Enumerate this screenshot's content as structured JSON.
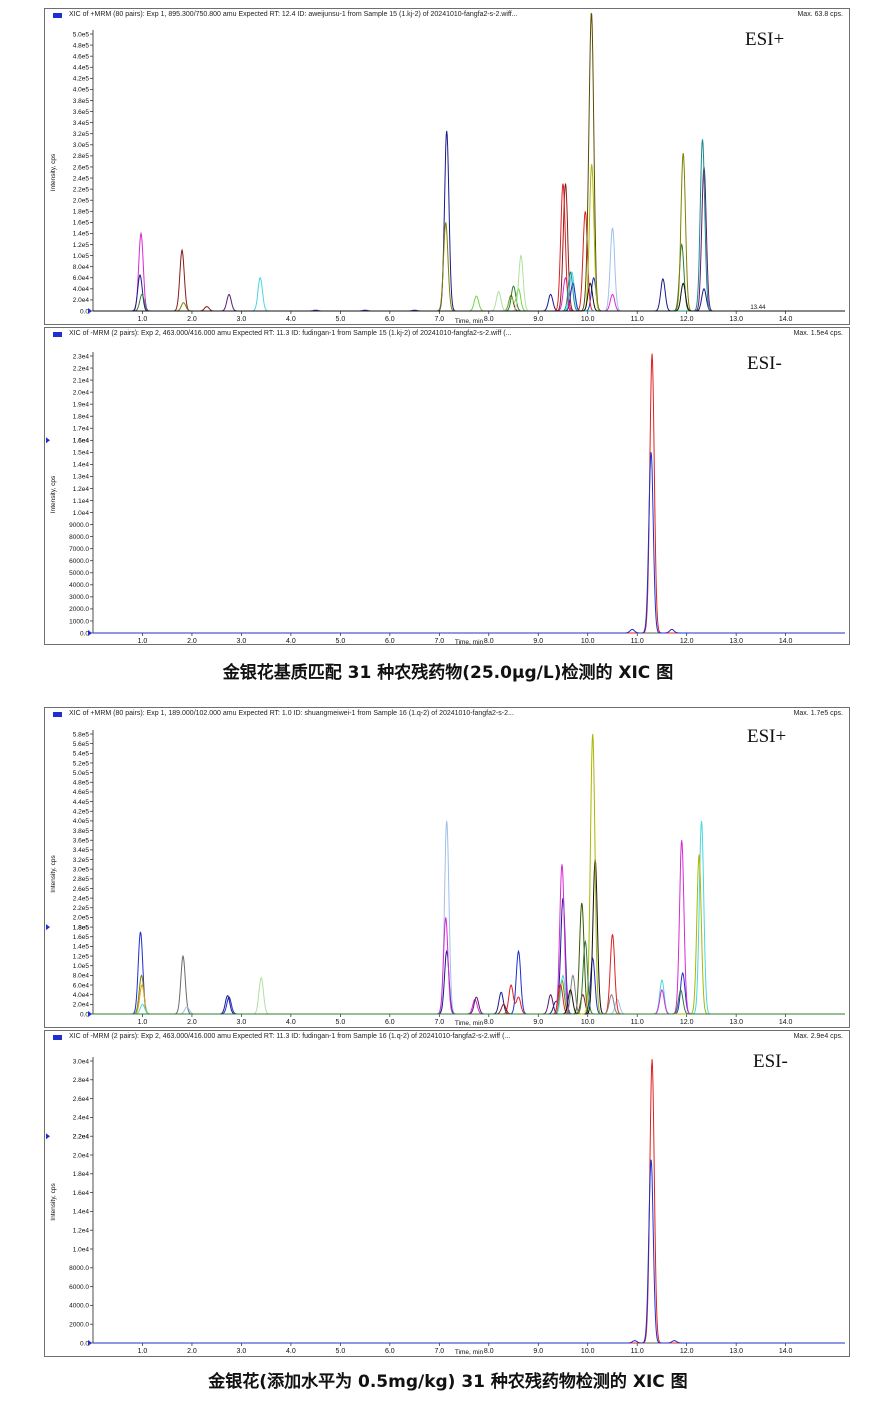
{
  "captions": {
    "top": "金银花基质匹配 31 种农残药物(25.0μg/L)检测的 XIC 图",
    "bottom": "金银花(添加水平为 0.5mg/kg) 31 种农残药物检测的 XIC 图"
  },
  "chart_data": [
    {
      "type": "line",
      "header": "XIC of +MRM (80 pairs): Exp 1, 895.300/750.800 amu Expected RT: 12.4 ID: aweijunsu-1 from Sample 15 (1.kj-2) of 20241010-fangfa2-s-2.wiff...",
      "max_label": "Max. 63.8 cps.",
      "esi_label": "ESI+",
      "ylabel": "Intensity, cps",
      "xlabel": "Time, min",
      "xlim": [
        0,
        15.2
      ],
      "ylim": [
        0,
        500000
      ],
      "x_ticks": [
        1,
        2,
        3,
        4,
        5,
        6,
        7,
        8,
        9,
        10,
        11,
        12,
        13,
        14
      ],
      "x_tick_labels": [
        "1.0",
        "2.0",
        "3.0",
        "4.0",
        "5.0",
        "6.0",
        "7.0",
        "8.0",
        "9.0",
        "10.0",
        "11.0",
        "12.0",
        "13.0",
        "14.0"
      ],
      "y_ticks": [
        0,
        20000,
        40000,
        60000,
        80000,
        100000,
        120000,
        140000,
        160000,
        180000,
        200000,
        220000,
        240000,
        260000,
        280000,
        300000,
        320000,
        340000,
        360000,
        380000,
        400000,
        420000,
        440000,
        460000,
        480000,
        500000
      ],
      "y_tick_labels": [
        "0.0",
        "2.0e4",
        "4.0e4",
        "6.0e4",
        "8.0e4",
        "1.0e5",
        "1.2e5",
        "1.4e5",
        "1.6e5",
        "1.8e5",
        "2.0e5",
        "2.2e5",
        "2.4e5",
        "2.6e5",
        "2.8e5",
        "3.0e5",
        "3.2e5",
        "3.4e5",
        "3.6e5",
        "3.8e5",
        "4.0e5",
        "4.2e5",
        "4.4e5",
        "4.6e5",
        "4.8e5",
        "5.0e5"
      ],
      "annotations": [
        "13.44"
      ],
      "series": [
        {
          "color": "#d62ad6",
          "peaks": [
            [
              0.97,
              140000
            ],
            [
              9.55,
              60000
            ],
            [
              10.5,
              30000
            ]
          ]
        },
        {
          "color": "#1a1a8c",
          "peaks": [
            [
              0.95,
              65000
            ],
            [
              7.15,
              325000
            ],
            [
              9.25,
              30000
            ],
            [
              11.52,
              58000
            ],
            [
              12.35,
              40000
            ]
          ]
        },
        {
          "color": "#2e7d32",
          "peaks": [
            [
              0.99,
              30000
            ],
            [
              8.5,
              45000
            ],
            [
              11.9,
              120000
            ]
          ]
        },
        {
          "color": "#8b1a1a",
          "peaks": [
            [
              1.8,
              110000
            ],
            [
              2.3,
              8000
            ],
            [
              8.45,
              28000
            ],
            [
              9.55,
              230000
            ]
          ]
        },
        {
          "color": "#808000",
          "peaks": [
            [
              1.83,
              15000
            ],
            [
              7.13,
              160000
            ],
            [
              11.93,
              285000
            ]
          ]
        },
        {
          "color": "#5a1a6e",
          "peaks": [
            [
              2.75,
              30000
            ],
            [
              12.35,
              260000
            ]
          ]
        },
        {
          "color": "#48d8e0",
          "peaks": [
            [
              3.38,
              60000
            ],
            [
              9.68,
              70000
            ]
          ]
        },
        {
          "color": "#1f2fd0",
          "peaks": [
            [
              4.5,
              1500
            ],
            [
              5.5,
              1500
            ],
            [
              6.5,
              1500
            ],
            [
              9.7,
              50000
            ],
            [
              10.12,
              60000
            ]
          ]
        },
        {
          "color": "#6ed640",
          "peaks": [
            [
              7.75,
              27000
            ],
            [
              8.45,
              25000
            ],
            [
              8.6,
              40000
            ]
          ]
        },
        {
          "color": "#b0e0a0",
          "peaks": [
            [
              8.2,
              35000
            ],
            [
              8.65,
              100000
            ]
          ]
        },
        {
          "color": "#e02020",
          "peaks": [
            [
              9.5,
              230000
            ],
            [
              9.95,
              180000
            ]
          ]
        },
        {
          "color": "#5a4a00",
          "peaks": [
            [
              10.08,
              495000
            ],
            [
              10.02,
              100000
            ]
          ]
        },
        {
          "color": "#a8b800",
          "peaks": [
            [
              10.08,
              265000
            ]
          ]
        },
        {
          "color": "#a0c0e8",
          "peaks": [
            [
              10.5,
              150000
            ]
          ]
        },
        {
          "color": "#1a8a8a",
          "peaks": [
            [
              9.65,
              70000
            ],
            [
              12.32,
              310000
            ]
          ]
        },
        {
          "color": "#111111",
          "peaks": [
            [
              10.05,
              50000
            ],
            [
              11.93,
              50000
            ]
          ]
        }
      ]
    },
    {
      "type": "line",
      "header": "XIC of -MRM (2 pairs): Exp 2, 463.000/416.000 amu Expected RT: 11.3 ID: fudingan-1 from Sample 15 (1.kj-2) of 20241010-fangfa2-s-2.wiff (...",
      "max_label": "Max. 1.5e4 cps.",
      "esi_label": "ESI-",
      "ylabel": "Intensity, cps",
      "xlabel": "Time, min",
      "xlim": [
        0,
        15.2
      ],
      "ylim": [
        0,
        23000
      ],
      "x_ticks": [
        1,
        2,
        3,
        4,
        5,
        6,
        7,
        8,
        9,
        10,
        11,
        12,
        13,
        14
      ],
      "x_tick_labels": [
        "1.0",
        "2.0",
        "3.0",
        "4.0",
        "5.0",
        "6.0",
        "7.0",
        "8.0",
        "9.0",
        "10.0",
        "11.0",
        "12.0",
        "13.0",
        "14.0"
      ],
      "y_ticks": [
        0,
        1000,
        2000,
        3000,
        4000,
        5000,
        6000,
        7000,
        8000,
        9000,
        10000,
        11000,
        12000,
        13000,
        14000,
        15000,
        16000,
        17000,
        18000,
        19000,
        20000,
        21000,
        22000,
        23000
      ],
      "y_tick_labels": [
        "0.0",
        "1000.0",
        "2000.0",
        "3000.0",
        "4000.0",
        "5000.0",
        "6000.0",
        "7000.0",
        "8000.0",
        "9000.0",
        "1.0e4",
        "1.1e4",
        "1.2e4",
        "1.3e4",
        "1.4e4",
        "1.5e4",
        "1.6e4",
        "1.7e4",
        "1.8e4",
        "1.9e4",
        "2.0e4",
        "2.1e4",
        "2.2e4",
        "2.3e4"
      ],
      "marker_label": "1.6e4",
      "series": [
        {
          "color": "#e02020",
          "peaks": [
            [
              11.3,
              23200
            ]
          ]
        },
        {
          "color": "#1f2fd0",
          "peaks": [
            [
              11.28,
              15000
            ],
            [
              10.9,
              300
            ],
            [
              11.7,
              300
            ]
          ]
        }
      ]
    },
    {
      "type": "line",
      "header": "XIC of +MRM (80 pairs): Exp 1, 189.000/102.000 amu Expected RT: 1.0 ID: shuangmeiwei-1 from Sample 16 (1.q-2) of 20241010-fangfa2-s-2...",
      "max_label": "Max. 1.7e5 cps.",
      "esi_label": "ESI+",
      "ylabel": "Intensity, cps",
      "xlabel": "Time, min",
      "xlim": [
        0,
        15.2
      ],
      "ylim": [
        0,
        580000
      ],
      "x_ticks": [
        1,
        2,
        3,
        4,
        5,
        6,
        7,
        8,
        9,
        10,
        11,
        12,
        13,
        14
      ],
      "x_tick_labels": [
        "1.0",
        "2.0",
        "3.0",
        "4.0",
        "5.0",
        "6.0",
        "7.0",
        "8.0",
        "9.0",
        "10.0",
        "11.0",
        "12.0",
        "13.0",
        "14.0"
      ],
      "y_ticks": [
        0,
        20000,
        40000,
        60000,
        80000,
        100000,
        120000,
        140000,
        160000,
        180000,
        200000,
        220000,
        240000,
        260000,
        280000,
        300000,
        320000,
        340000,
        360000,
        380000,
        400000,
        420000,
        440000,
        460000,
        480000,
        500000,
        520000,
        540000,
        560000,
        580000
      ],
      "y_tick_labels": [
        "0.0",
        "2.0e4",
        "4.0e4",
        "6.0e4",
        "8.0e4",
        "1.0e5",
        "1.2e5",
        "1.4e5",
        "1.6e5",
        "1.8e5",
        "2.0e5",
        "2.2e5",
        "2.4e5",
        "2.6e5",
        "2.8e5",
        "3.0e5",
        "3.2e5",
        "3.4e5",
        "3.6e5",
        "3.8e5",
        "4.0e5",
        "4.2e5",
        "4.4e5",
        "4.6e5",
        "4.8e5",
        "5.0e5",
        "5.2e5",
        "5.4e5",
        "5.6e5",
        "5.8e5"
      ],
      "marker_label": "1.8e5",
      "series": [
        {
          "color": "#1f2fd0",
          "peaks": [
            [
              0.96,
              170000
            ],
            [
              2.75,
              35000
            ],
            [
              8.6,
              130000
            ],
            [
              10.1,
              115000
            ],
            [
              11.92,
              85000
            ]
          ]
        },
        {
          "color": "#808000",
          "peaks": [
            [
              0.98,
              80000
            ],
            [
              9.48,
              70000
            ]
          ]
        },
        {
          "color": "#d4a017",
          "peaks": [
            [
              0.99,
              60000
            ]
          ]
        },
        {
          "color": "#48d8e0",
          "peaks": [
            [
              1.0,
              20000
            ],
            [
              9.5,
              80000
            ],
            [
              11.5,
              70000
            ],
            [
              12.3,
              400000
            ]
          ]
        },
        {
          "color": "#6a6a6a",
          "peaks": [
            [
              1.82,
              120000
            ]
          ]
        },
        {
          "color": "#a0c0e8",
          "peaks": [
            [
              1.9,
              15000
            ],
            [
              7.15,
              400000
            ],
            [
              10.6,
              30000
            ]
          ]
        },
        {
          "color": "#1a1a8c",
          "peaks": [
            [
              2.72,
              38000
            ],
            [
              7.15,
              130000
            ],
            [
              8.25,
              45000
            ],
            [
              9.35,
              25000
            ],
            [
              9.5,
              240000
            ]
          ]
        },
        {
          "color": "#b0e0a0",
          "peaks": [
            [
              3.4,
              75000
            ]
          ]
        },
        {
          "color": "#d62ad6",
          "peaks": [
            [
              7.13,
              200000
            ],
            [
              7.72,
              30000
            ],
            [
              9.48,
              310000
            ],
            [
              11.5,
              50000
            ],
            [
              11.9,
              360000
            ]
          ]
        },
        {
          "color": "#5a1a6e",
          "peaks": [
            [
              7.75,
              35000
            ],
            [
              9.25,
              40000
            ]
          ]
        },
        {
          "color": "#e02020",
          "peaks": [
            [
              8.45,
              60000
            ],
            [
              8.6,
              35000
            ],
            [
              9.45,
              60000
            ],
            [
              10.5,
              165000
            ]
          ]
        },
        {
          "color": "#8b1a1a",
          "peaks": [
            [
              8.3,
              20000
            ],
            [
              9.9,
              40000
            ]
          ]
        },
        {
          "color": "#3a5a00",
          "peaks": [
            [
              9.88,
              230000
            ]
          ]
        },
        {
          "color": "#808080",
          "peaks": [
            [
              9.7,
              80000
            ],
            [
              10.48,
              40000
            ]
          ]
        },
        {
          "color": "#111111",
          "peaks": [
            [
              9.65,
              50000
            ],
            [
              10.15,
              320000
            ]
          ]
        },
        {
          "color": "#a8b800",
          "peaks": [
            [
              10.1,
              580000
            ],
            [
              12.25,
              330000
            ]
          ]
        },
        {
          "color": "#2e7d32",
          "peaks": [
            [
              9.95,
              150000
            ],
            [
              11.88,
              50000
            ]
          ]
        }
      ]
    },
    {
      "type": "line",
      "header": "XIC of -MRM (2 pairs): Exp 2, 463.000/416.000 amu Expected RT: 11.3 ID: fudingan-1 from Sample 16 (1.q-2) of 20241010-fangfa2-s-2.wiff (...",
      "max_label": "Max. 2.9e4 cps.",
      "esi_label": "ESI-",
      "ylabel": "Intensity, cps",
      "xlabel": "Time, min",
      "xlim": [
        0,
        15.2
      ],
      "ylim": [
        0,
        30000
      ],
      "x_ticks": [
        1,
        2,
        3,
        4,
        5,
        6,
        7,
        8,
        9,
        10,
        11,
        12,
        13,
        14
      ],
      "x_tick_labels": [
        "1.0",
        "2.0",
        "3.0",
        "4.0",
        "5.0",
        "6.0",
        "7.0",
        "8.0",
        "9.0",
        "10.0",
        "11.0",
        "12.0",
        "13.0",
        "14.0"
      ],
      "y_ticks": [
        0,
        2000,
        4000,
        6000,
        8000,
        10000,
        12000,
        14000,
        16000,
        18000,
        20000,
        22000,
        24000,
        26000,
        28000,
        30000
      ],
      "y_tick_labels": [
        "0.0",
        "2000.0",
        "4000.0",
        "6000.0",
        "8000.0",
        "1.0e4",
        "1.2e4",
        "1.4e4",
        "1.6e4",
        "1.8e4",
        "2.0e4",
        "2.2e4",
        "2.4e4",
        "2.6e4",
        "2.8e4",
        "3.0e4"
      ],
      "marker_label": "2.2e4",
      "series": [
        {
          "color": "#e02020",
          "peaks": [
            [
              11.3,
              30200
            ]
          ]
        },
        {
          "color": "#1f2fd0",
          "peaks": [
            [
              11.28,
              19500
            ],
            [
              10.95,
              250
            ],
            [
              11.75,
              250
            ]
          ]
        }
      ]
    }
  ]
}
